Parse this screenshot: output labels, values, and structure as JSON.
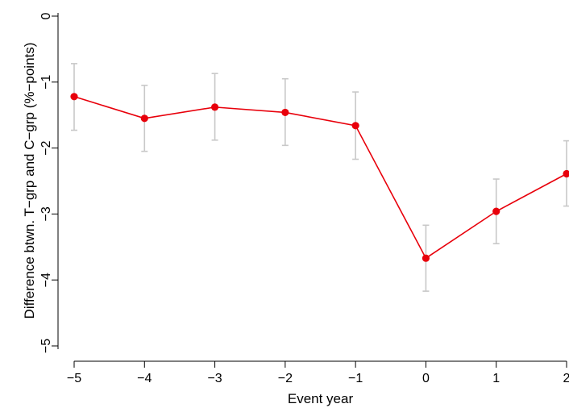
{
  "chart_data": {
    "type": "line",
    "title": "",
    "xlabel": "Event year",
    "ylabel": "Difference btwn. T−grp and C−grp (%−points)",
    "x": [
      -5,
      -4,
      -3,
      -2,
      -1,
      0,
      1,
      2
    ],
    "x_tick_labels": [
      "−5",
      "−4",
      "−3",
      "−2",
      "−1",
      "0",
      "1",
      "2"
    ],
    "y_ticks": [
      0,
      -1,
      -2,
      -3,
      -4,
      -5
    ],
    "y_tick_labels": [
      "0",
      "−1",
      "−2",
      "−3",
      "−4",
      "−5"
    ],
    "xlim": [
      -5,
      2
    ],
    "ylim": [
      -5,
      0
    ],
    "grid": false,
    "legend": "none",
    "series": [
      {
        "values": [
          -1.22,
          -1.55,
          -1.38,
          -1.46,
          -1.66,
          -3.67,
          -2.96,
          -2.39
        ],
        "ci_lower": [
          -1.73,
          -2.05,
          -1.88,
          -1.96,
          -2.17,
          -4.17,
          -3.45,
          -2.88
        ],
        "ci_upper": [
          -0.72,
          -1.05,
          -0.87,
          -0.95,
          -1.15,
          -3.17,
          -2.47,
          -1.89
        ],
        "color": "#e8000b",
        "ci_color": "#c8c8c8"
      }
    ]
  }
}
